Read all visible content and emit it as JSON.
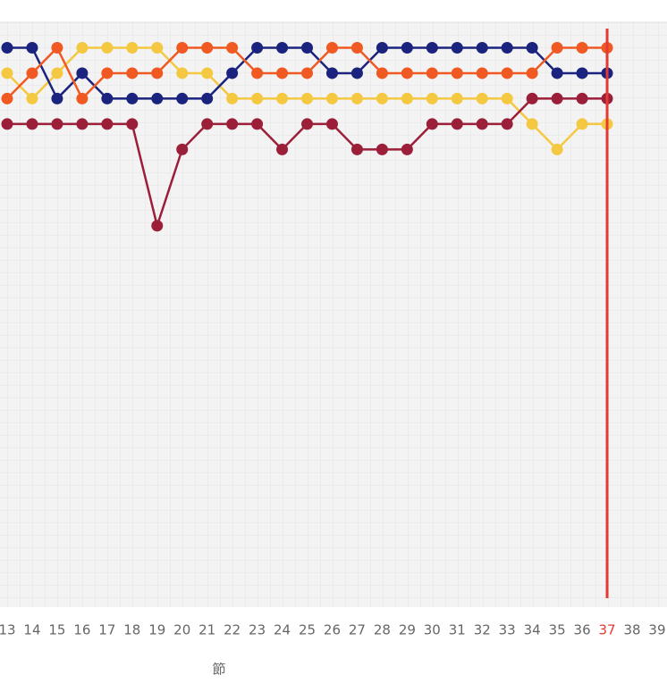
{
  "chart_data": {
    "type": "line",
    "x_label": "節",
    "categories": [
      "13",
      "14",
      "15",
      "16",
      "17",
      "18",
      "19",
      "20",
      "21",
      "22",
      "23",
      "24",
      "25",
      "26",
      "27",
      "28",
      "29",
      "30",
      "31",
      "32",
      "33",
      "34",
      "35",
      "36",
      "37",
      "38",
      "39"
    ],
    "series": [
      {
        "color": "#f5c842",
        "values": [
          2,
          3,
          2,
          1,
          1,
          1,
          1,
          2,
          2,
          3,
          3,
          3,
          3,
          3,
          3,
          3,
          3,
          3,
          3,
          3,
          3,
          4,
          5,
          4,
          4,
          null,
          null
        ]
      },
      {
        "color": "#1a237e",
        "values": [
          1,
          1,
          3,
          2,
          3,
          3,
          3,
          3,
          3,
          2,
          1,
          1,
          1,
          2,
          2,
          1,
          1,
          1,
          1,
          1,
          1,
          1,
          2,
          2,
          2,
          null,
          null
        ]
      },
      {
        "color": "#9c1f3a",
        "values": [
          4,
          4,
          4,
          4,
          4,
          4,
          8,
          5,
          4,
          4,
          4,
          5,
          4,
          4,
          5,
          5,
          5,
          4,
          4,
          4,
          4,
          3,
          3,
          3,
          3,
          null,
          null
        ]
      },
      {
        "color": "#f05a22",
        "values": [
          3,
          2,
          1,
          3,
          2,
          2,
          2,
          1,
          1,
          1,
          2,
          2,
          2,
          1,
          1,
          2,
          2,
          2,
          2,
          2,
          2,
          2,
          1,
          1,
          1,
          null,
          null
        ]
      }
    ],
    "ylim": [
      0,
      23
    ],
    "y_inverted": true,
    "highlight_index": 24,
    "highlight_color": "#e53935"
  }
}
